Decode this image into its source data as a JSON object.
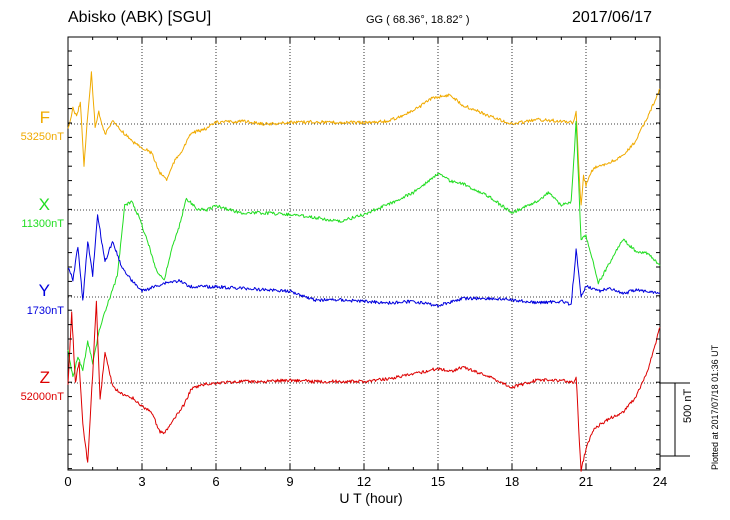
{
  "header": {
    "title": "Abisko (ABK)  [SGU]",
    "coords": "GG ( 68.36°,  18.82° )",
    "date": "2017/06/17"
  },
  "axes": {
    "xlabel": "U T (hour)",
    "xticks": [
      "0",
      "3",
      "6",
      "9",
      "12",
      "15",
      "18",
      "21",
      "24"
    ],
    "scale_label": "500 nT",
    "plot_stamp": "Plotted at 2017/07/18 01:36 UT"
  },
  "components": [
    {
      "name": "F",
      "baseline": "53250nT",
      "color": "#f0aa00"
    },
    {
      "name": "X",
      "baseline": "11300nT",
      "color": "#22dd22"
    },
    {
      "name": "Y",
      "baseline": "1730nT",
      "color": "#0000dd"
    },
    {
      "name": "Z",
      "baseline": "52000nT",
      "color": "#dd0000"
    }
  ],
  "chart_data": {
    "type": "line",
    "title": "Abisko (ABK)  [SGU]",
    "xlabel": "U T (hour)",
    "ylabel": "",
    "xlim": [
      0,
      24
    ],
    "x_ticks": [
      0,
      3,
      6,
      9,
      12,
      15,
      18,
      21,
      24
    ],
    "scale_bar_nT": 500,
    "grid": true,
    "series": [
      {
        "name": "F",
        "baseline_nT": 53250,
        "color": "#f0aa00",
        "x": [
          0,
          0.2,
          0.35,
          0.5,
          0.65,
          0.8,
          0.95,
          1.1,
          1.25,
          1.5,
          1.8,
          2.2,
          2.6,
          3.0,
          3.4,
          3.7,
          3.9,
          4.0,
          4.3,
          4.7,
          5.0,
          5.5,
          6.0,
          7.0,
          8.0,
          9.0,
          10.0,
          11.0,
          12.0,
          13.0,
          14.0,
          14.8,
          15.5,
          16.0,
          17.0,
          18.0,
          19.0,
          20.0,
          20.5,
          20.6,
          20.7,
          20.8,
          20.9,
          21.0,
          21.3,
          21.6,
          22.0,
          22.5,
          23.0,
          23.5,
          24.0
        ],
        "y": [
          -40,
          110,
          50,
          150,
          -280,
          60,
          350,
          -20,
          80,
          -70,
          20,
          -50,
          -120,
          -160,
          -200,
          -330,
          -360,
          -380,
          -260,
          -160,
          -60,
          -40,
          10,
          20,
          0,
          10,
          15,
          10,
          10,
          20,
          90,
          180,
          200,
          130,
          60,
          0,
          30,
          20,
          10,
          80,
          -280,
          -560,
          -360,
          -420,
          -300,
          -290,
          -260,
          -220,
          -120,
          50,
          240
        ]
      },
      {
        "name": "X",
        "baseline_nT": 11300,
        "color": "#22dd22",
        "x": [
          0,
          0.2,
          0.4,
          0.6,
          0.8,
          1.0,
          1.3,
          1.6,
          2.0,
          2.3,
          2.6,
          2.9,
          3.2,
          3.6,
          3.9,
          4.2,
          4.5,
          4.8,
          5.2,
          5.6,
          6.0,
          7.0,
          8.0,
          9.0,
          10.0,
          11.0,
          12.0,
          13.0,
          14.0,
          15.0,
          15.5,
          16.0,
          17.0,
          18.0,
          19.0,
          19.5,
          20.0,
          20.4,
          20.6,
          20.8,
          21.0,
          21.2,
          21.5,
          22.0,
          22.5,
          23.0,
          23.5,
          24.0
        ],
        "y": [
          -950,
          -1150,
          -1000,
          -1100,
          -900,
          -1050,
          -800,
          -650,
          -450,
          30,
          60,
          -60,
          -200,
          -420,
          -480,
          -270,
          -120,
          80,
          10,
          0,
          30,
          -20,
          -20,
          -30,
          -50,
          -80,
          -30,
          40,
          120,
          250,
          200,
          180,
          100,
          -20,
          60,
          120,
          30,
          60,
          600,
          -200,
          -180,
          -300,
          -500,
          -350,
          -200,
          -280,
          -300,
          -380
        ]
      },
      {
        "name": "Y",
        "baseline_nT": 1730,
        "color": "#0000dd",
        "x": [
          0,
          0.2,
          0.4,
          0.6,
          0.8,
          1.0,
          1.2,
          1.5,
          1.8,
          2.2,
          2.6,
          3.0,
          3.5,
          4.0,
          4.5,
          5.0,
          6.0,
          7.0,
          8.0,
          9.0,
          10.0,
          11.0,
          12.0,
          13.0,
          14.0,
          15.0,
          16.0,
          17.0,
          18.0,
          19.0,
          20.0,
          20.4,
          20.6,
          20.8,
          21.0,
          21.5,
          22.0,
          22.5,
          23.0,
          23.5,
          24.0
        ],
        "y": [
          200,
          120,
          350,
          -30,
          380,
          150,
          560,
          240,
          380,
          200,
          110,
          40,
          70,
          100,
          110,
          70,
          70,
          60,
          50,
          40,
          -20,
          -20,
          -30,
          -40,
          -30,
          -60,
          -10,
          -10,
          -20,
          -40,
          -30,
          -50,
          320,
          0,
          80,
          40,
          60,
          20,
          50,
          40,
          30
        ]
      },
      {
        "name": "Z",
        "baseline_nT": 52000,
        "color": "#dd0000",
        "x": [
          0,
          0.15,
          0.3,
          0.45,
          0.6,
          0.8,
          1.0,
          1.15,
          1.3,
          1.5,
          1.8,
          2.2,
          2.6,
          3.0,
          3.4,
          3.7,
          3.9,
          4.0,
          4.3,
          4.7,
          5.0,
          5.5,
          6.0,
          7.0,
          8.0,
          9.0,
          10.0,
          11.0,
          12.0,
          13.0,
          14.0,
          15.0,
          15.5,
          16.0,
          17.0,
          18.0,
          19.0,
          20.0,
          20.5,
          20.6,
          20.7,
          20.8,
          21.0,
          21.3,
          21.6,
          22.0,
          22.5,
          23.0,
          23.5,
          24.0
        ],
        "y": [
          -10,
          480,
          0,
          150,
          -280,
          -550,
          60,
          560,
          -120,
          210,
          -20,
          -80,
          -100,
          -160,
          -200,
          -330,
          -350,
          -320,
          -250,
          -150,
          -40,
          -10,
          0,
          10,
          10,
          20,
          10,
          10,
          10,
          30,
          60,
          100,
          80,
          110,
          50,
          -30,
          20,
          20,
          0,
          50,
          -300,
          -600,
          -450,
          -320,
          -280,
          -240,
          -200,
          -100,
          80,
          380
        ]
      }
    ]
  }
}
